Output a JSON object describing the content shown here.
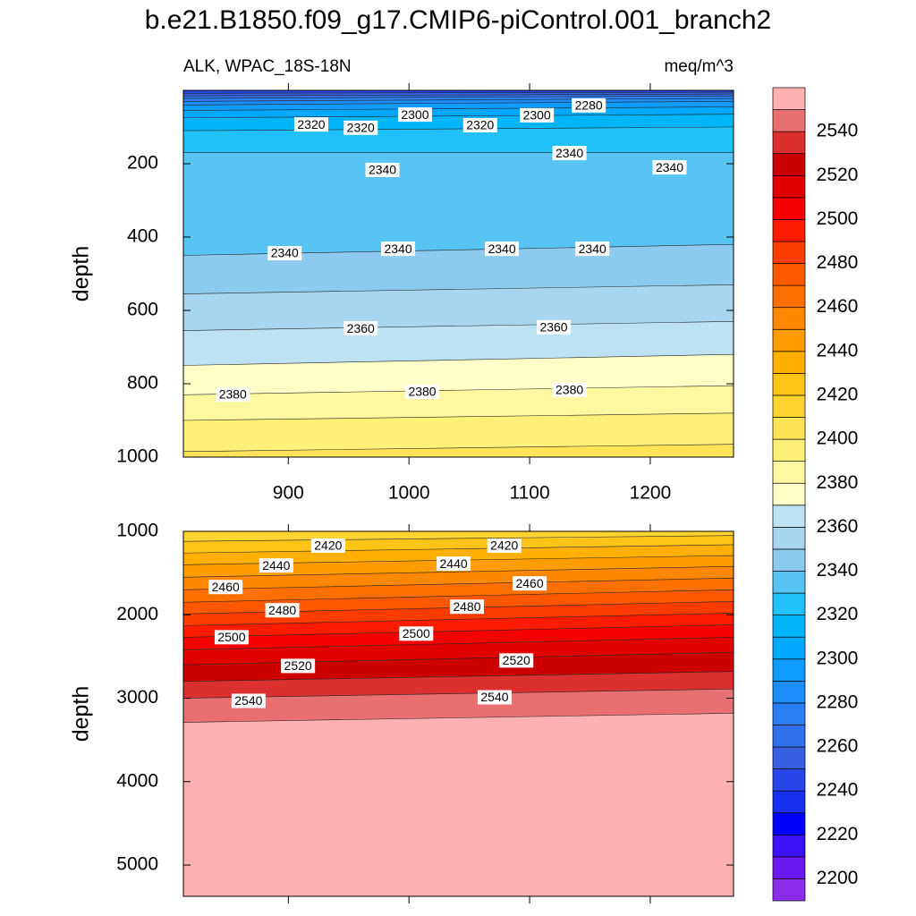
{
  "title": "b.e21.B1850.f09_g17.CMIP6-piControl.001_branch2",
  "colorbar": {
    "levels": [
      2200,
      2210,
      2220,
      2230,
      2240,
      2250,
      2260,
      2270,
      2280,
      2290,
      2300,
      2310,
      2320,
      2330,
      2340,
      2350,
      2360,
      2370,
      2380,
      2390,
      2400,
      2410,
      2420,
      2430,
      2440,
      2450,
      2460,
      2470,
      2480,
      2490,
      2500,
      2510,
      2520,
      2530,
      2540,
      2550
    ],
    "colors": [
      "#8b2ce8",
      "#6a18f0",
      "#3a10f5",
      "#0000ff",
      "#1a30f0",
      "#2a46e8",
      "#3560e0",
      "#3070e8",
      "#2a80f0",
      "#1c8cf8",
      "#109cff",
      "#00a8ff",
      "#00b4f8",
      "#20c0f8",
      "#58c4f4",
      "#8ccaee",
      "#a8d6f0",
      "#bce2f4",
      "#ffffc8",
      "#fff8a0",
      "#fff078",
      "#ffe458",
      "#ffd430",
      "#ffc418",
      "#ffb000",
      "#ff9c00",
      "#ff8800",
      "#ff7000",
      "#ff5800",
      "#ff3c00",
      "#ff1c00",
      "#f40000",
      "#e00000",
      "#cc0000",
      "#dc3030",
      "#e87070",
      "#ffb0b0"
    ],
    "ticks": [
      2200,
      2220,
      2240,
      2260,
      2280,
      2300,
      2320,
      2340,
      2360,
      2380,
      2400,
      2420,
      2440,
      2460,
      2480,
      2500,
      2520,
      2540
    ]
  },
  "chart_data": [
    {
      "type": "contour",
      "subtitle_left": "ALK, WPAC_18S-18N",
      "subtitle_right": "meq/m^3",
      "y_label": "depth",
      "xlim": [
        813,
        1269
      ],
      "xticks": [
        900,
        1000,
        1100,
        1200
      ],
      "show_xtick_labels": true,
      "ylim": [
        0,
        1000
      ],
      "yticks": [
        200,
        400,
        600,
        800,
        1000
      ],
      "contour_x": [
        813,
        1269
      ],
      "contours": [
        {
          "level": 2250,
          "depth": [
            8,
            5
          ]
        },
        {
          "level": 2260,
          "depth": [
            15,
            10
          ]
        },
        {
          "level": 2270,
          "depth": [
            22,
            15
          ]
        },
        {
          "level": 2280,
          "depth": [
            30,
            22
          ]
        },
        {
          "level": 2290,
          "depth": [
            40,
            30
          ]
        },
        {
          "level": 2300,
          "depth": [
            55,
            45
          ]
        },
        {
          "level": 2310,
          "depth": [
            75,
            65
          ]
        },
        {
          "level": 2320,
          "depth": [
            110,
            100
          ]
        },
        {
          "level": 2330,
          "depth": [
            170,
            170
          ]
        },
        {
          "level": 2340,
          "depth": [
            450,
            420
          ]
        },
        {
          "level": 2350,
          "depth": [
            555,
            530
          ]
        },
        {
          "level": 2360,
          "depth": [
            655,
            630
          ]
        },
        {
          "level": 2370,
          "depth": [
            750,
            720
          ]
        },
        {
          "level": 2380,
          "depth": [
            830,
            805
          ]
        },
        {
          "level": 2390,
          "depth": [
            900,
            880
          ]
        },
        {
          "level": 2400,
          "depth": [
            985,
            965
          ]
        }
      ],
      "contour_labels": [
        {
          "value": 2320,
          "x": 919,
          "depth": 93
        },
        {
          "value": 2320,
          "x": 960,
          "depth": 102
        },
        {
          "value": 2300,
          "x": 1005,
          "depth": 66
        },
        {
          "value": 2320,
          "x": 1059,
          "depth": 95
        },
        {
          "value": 2300,
          "x": 1106,
          "depth": 68
        },
        {
          "value": 2280,
          "x": 1149,
          "depth": 41
        },
        {
          "value": 2340,
          "x": 1133,
          "depth": 171
        },
        {
          "value": 2340,
          "x": 978,
          "depth": 217
        },
        {
          "value": 2340,
          "x": 1216,
          "depth": 210
        },
        {
          "value": 2340,
          "x": 897,
          "depth": 444
        },
        {
          "value": 2340,
          "x": 991,
          "depth": 432
        },
        {
          "value": 2340,
          "x": 1077,
          "depth": 432
        },
        {
          "value": 2340,
          "x": 1152,
          "depth": 432
        },
        {
          "value": 2360,
          "x": 960,
          "depth": 649
        },
        {
          "value": 2360,
          "x": 1120,
          "depth": 646
        },
        {
          "value": 2380,
          "x": 854,
          "depth": 829
        },
        {
          "value": 2380,
          "x": 1011,
          "depth": 822
        },
        {
          "value": 2380,
          "x": 1133,
          "depth": 817
        }
      ]
    },
    {
      "type": "contour",
      "y_label": "depth",
      "xlim": [
        813,
        1269
      ],
      "xticks": [
        900,
        1000,
        1100,
        1200
      ],
      "show_xtick_labels": false,
      "ylim": [
        1000,
        5375
      ],
      "yticks": [
        1000,
        2000,
        3000,
        4000,
        5000
      ],
      "contour_x": [
        813,
        1269
      ],
      "contours": [
        {
          "level": 2420,
          "depth": [
            1120,
            1050
          ]
        },
        {
          "level": 2430,
          "depth": [
            1260,
            1160
          ]
        },
        {
          "level": 2440,
          "depth": [
            1400,
            1290
          ]
        },
        {
          "level": 2450,
          "depth": [
            1550,
            1420
          ]
        },
        {
          "level": 2460,
          "depth": [
            1700,
            1560
          ]
        },
        {
          "level": 2470,
          "depth": [
            1850,
            1700
          ]
        },
        {
          "level": 2480,
          "depth": [
            1990,
            1840
          ]
        },
        {
          "level": 2490,
          "depth": [
            2130,
            1980
          ]
        },
        {
          "level": 2500,
          "depth": [
            2270,
            2120
          ]
        },
        {
          "level": 2510,
          "depth": [
            2420,
            2270
          ]
        },
        {
          "level": 2520,
          "depth": [
            2600,
            2450
          ]
        },
        {
          "level": 2530,
          "depth": [
            2800,
            2680
          ]
        },
        {
          "level": 2540,
          "depth": [
            3000,
            2890
          ]
        },
        {
          "level": 2550,
          "depth": [
            3290,
            3180
          ]
        }
      ],
      "contour_labels": [
        {
          "value": 2420,
          "x": 933,
          "depth": 1172
        },
        {
          "value": 2420,
          "x": 1079,
          "depth": 1172
        },
        {
          "value": 2440,
          "x": 890,
          "depth": 1409
        },
        {
          "value": 2440,
          "x": 1037,
          "depth": 1387
        },
        {
          "value": 2460,
          "x": 848,
          "depth": 1667
        },
        {
          "value": 2460,
          "x": 1100,
          "depth": 1624
        },
        {
          "value": 2480,
          "x": 895,
          "depth": 1946
        },
        {
          "value": 2480,
          "x": 1048,
          "depth": 1903
        },
        {
          "value": 2500,
          "x": 853,
          "depth": 2269
        },
        {
          "value": 2500,
          "x": 1006,
          "depth": 2226
        },
        {
          "value": 2520,
          "x": 908,
          "depth": 2613
        },
        {
          "value": 2520,
          "x": 1089,
          "depth": 2548
        },
        {
          "value": 2540,
          "x": 867,
          "depth": 3032
        },
        {
          "value": 2540,
          "x": 1071,
          "depth": 2989
        }
      ]
    }
  ]
}
